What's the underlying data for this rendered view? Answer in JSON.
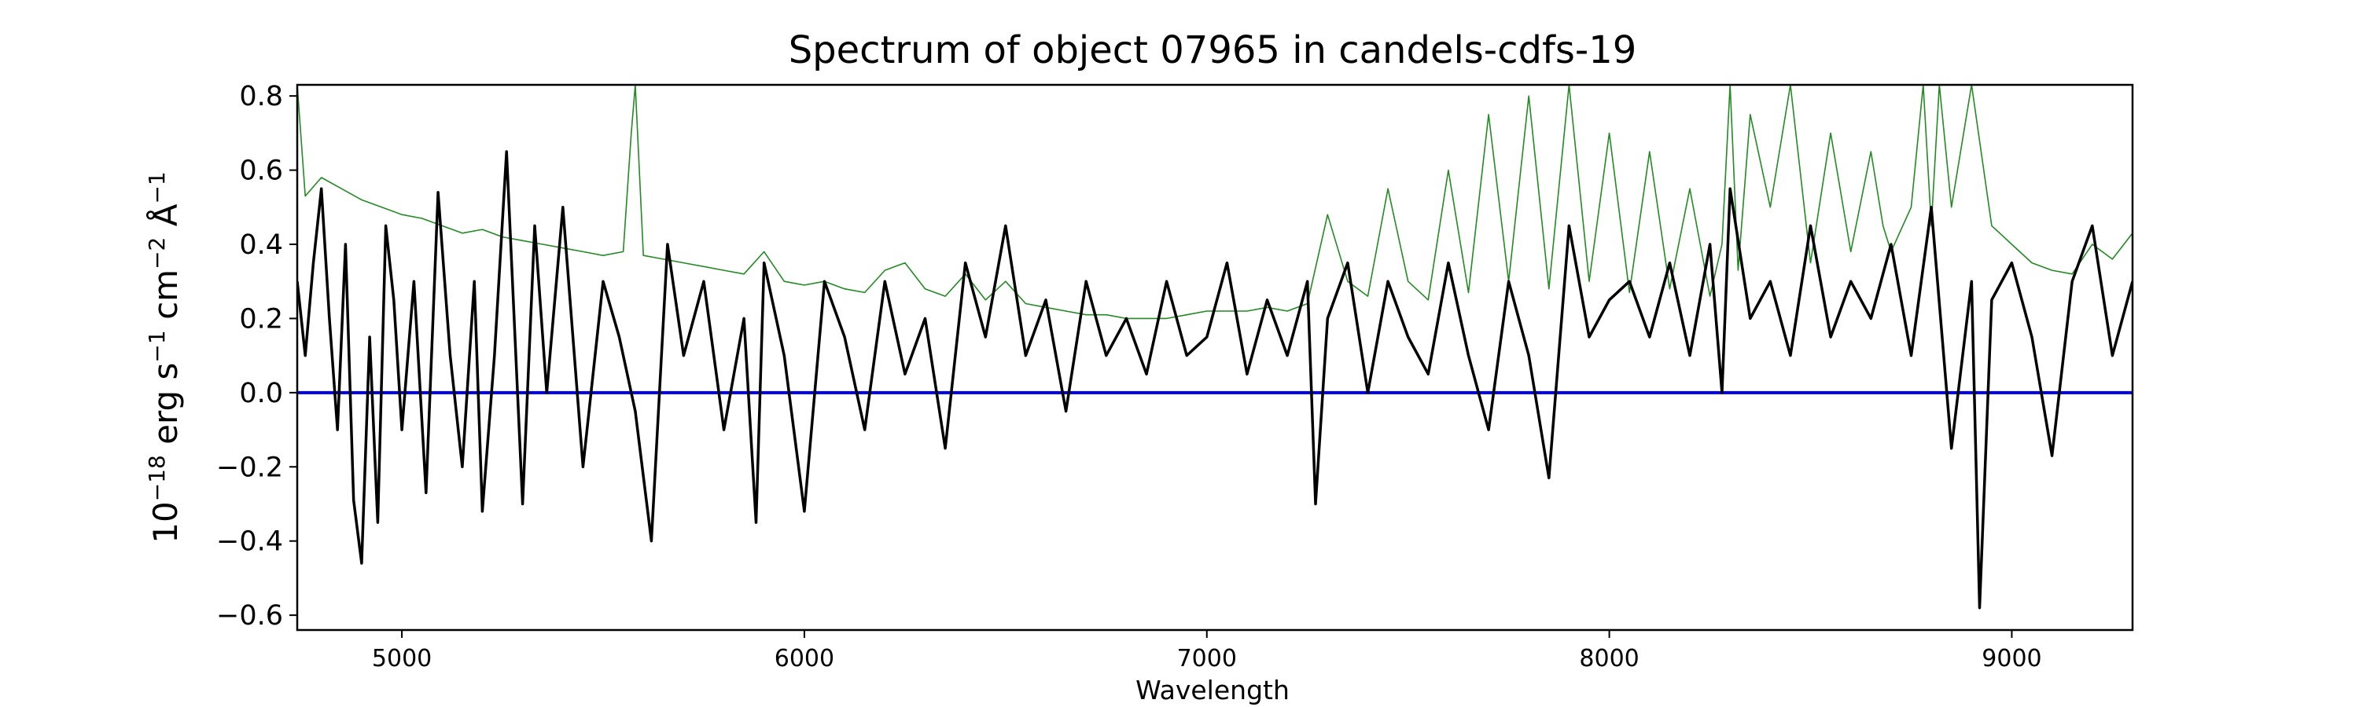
{
  "chart_data": {
    "type": "line",
    "title": "Spectrum of object 07965 in candels-cdfs-19",
    "xlabel": "Wavelength",
    "ylabel_parts": {
      "base": "10",
      "exp1": "−18",
      "u1": " erg s",
      "exp2": "−1",
      "u2": " cm",
      "exp3": "−2",
      "u3": " Å",
      "exp4": "−1"
    },
    "xlim": [
      4740,
      9300
    ],
    "ylim": [
      -0.64,
      0.83
    ],
    "x_ticks": [
      5000,
      6000,
      7000,
      8000,
      9000
    ],
    "x_tick_labels": [
      "5000",
      "6000",
      "7000",
      "8000",
      "9000"
    ],
    "y_ticks": [
      -0.6,
      -0.4,
      -0.2,
      0.0,
      0.2,
      0.4,
      0.6,
      0.8
    ],
    "y_tick_labels": [
      "−0.6",
      "−0.4",
      "−0.2",
      "0.0",
      "0.2",
      "0.4",
      "0.6",
      "0.8"
    ],
    "grid": false,
    "colors": {
      "flux": "#000000",
      "error": "#228b22",
      "zero": "#0000cc"
    },
    "series": [
      {
        "role": "flux",
        "color": "#000000",
        "x": [
          4740,
          4760,
          4780,
          4800,
          4820,
          4840,
          4860,
          4880,
          4900,
          4920,
          4940,
          4960,
          4980,
          5000,
          5030,
          5060,
          5090,
          5120,
          5150,
          5180,
          5200,
          5230,
          5260,
          5300,
          5330,
          5360,
          5400,
          5450,
          5500,
          5540,
          5580,
          5620,
          5660,
          5700,
          5750,
          5800,
          5850,
          5880,
          5900,
          5950,
          6000,
          6050,
          6100,
          6150,
          6200,
          6250,
          6300,
          6350,
          6400,
          6450,
          6500,
          6550,
          6600,
          6650,
          6700,
          6750,
          6800,
          6850,
          6900,
          6950,
          7000,
          7050,
          7100,
          7150,
          7200,
          7250,
          7270,
          7300,
          7350,
          7400,
          7450,
          7500,
          7550,
          7600,
          7650,
          7700,
          7750,
          7800,
          7850,
          7900,
          7950,
          8000,
          8050,
          8100,
          8150,
          8200,
          8250,
          8280,
          8300,
          8350,
          8400,
          8450,
          8500,
          8550,
          8600,
          8650,
          8700,
          8750,
          8800,
          8850,
          8900,
          8920,
          8950,
          9000,
          9050,
          9100,
          9150,
          9200,
          9250,
          9300
        ],
        "y": [
          0.3,
          0.1,
          0.35,
          0.55,
          0.2,
          -0.1,
          0.4,
          -0.29,
          -0.46,
          0.15,
          -0.35,
          0.45,
          0.25,
          -0.1,
          0.3,
          -0.27,
          0.54,
          0.1,
          -0.2,
          0.3,
          -0.32,
          0.1,
          0.65,
          -0.3,
          0.45,
          0.0,
          0.5,
          -0.2,
          0.3,
          0.15,
          -0.05,
          -0.4,
          0.4,
          0.1,
          0.3,
          -0.1,
          0.2,
          -0.35,
          0.35,
          0.1,
          -0.32,
          0.3,
          0.15,
          -0.1,
          0.3,
          0.05,
          0.2,
          -0.15,
          0.35,
          0.15,
          0.45,
          0.1,
          0.25,
          -0.05,
          0.3,
          0.1,
          0.2,
          0.05,
          0.3,
          0.1,
          0.15,
          0.35,
          0.05,
          0.25,
          0.1,
          0.3,
          -0.3,
          0.2,
          0.35,
          0.0,
          0.3,
          0.15,
          0.05,
          0.35,
          0.1,
          -0.1,
          0.3,
          0.1,
          -0.23,
          0.45,
          0.15,
          0.25,
          0.3,
          0.15,
          0.35,
          0.1,
          0.4,
          0.0,
          0.55,
          0.2,
          0.3,
          0.1,
          0.45,
          0.15,
          0.3,
          0.2,
          0.4,
          0.1,
          0.5,
          -0.15,
          0.3,
          -0.58,
          0.25,
          0.35,
          0.15,
          -0.17,
          0.3,
          0.45,
          0.1,
          0.3
        ]
      },
      {
        "role": "error",
        "color": "#228b22",
        "x": [
          4740,
          4760,
          4800,
          4850,
          4900,
          4950,
          5000,
          5050,
          5100,
          5150,
          5200,
          5250,
          5300,
          5350,
          5400,
          5450,
          5500,
          5550,
          5570,
          5580,
          5600,
          5650,
          5700,
          5750,
          5800,
          5850,
          5900,
          5950,
          6000,
          6050,
          6100,
          6150,
          6200,
          6250,
          6300,
          6350,
          6400,
          6450,
          6500,
          6550,
          6600,
          6650,
          6700,
          6750,
          6800,
          6850,
          6900,
          6950,
          7000,
          7050,
          7100,
          7150,
          7200,
          7250,
          7300,
          7350,
          7400,
          7450,
          7500,
          7550,
          7600,
          7650,
          7700,
          7750,
          7800,
          7850,
          7900,
          7950,
          8000,
          8050,
          8100,
          8150,
          8200,
          8250,
          8280,
          8300,
          8320,
          8350,
          8400,
          8450,
          8500,
          8550,
          8600,
          8650,
          8680,
          8700,
          8750,
          8780,
          8800,
          8820,
          8850,
          8900,
          8950,
          9000,
          9050,
          9100,
          9150,
          9200,
          9250,
          9300
        ],
        "y": [
          0.83,
          0.53,
          0.58,
          0.55,
          0.52,
          0.5,
          0.48,
          0.47,
          0.45,
          0.43,
          0.44,
          0.42,
          0.41,
          0.4,
          0.39,
          0.38,
          0.37,
          0.38,
          0.7,
          0.83,
          0.37,
          0.36,
          0.35,
          0.34,
          0.33,
          0.32,
          0.38,
          0.3,
          0.29,
          0.3,
          0.28,
          0.27,
          0.33,
          0.35,
          0.28,
          0.26,
          0.32,
          0.25,
          0.3,
          0.24,
          0.23,
          0.22,
          0.21,
          0.21,
          0.2,
          0.2,
          0.2,
          0.21,
          0.22,
          0.22,
          0.22,
          0.23,
          0.22,
          0.24,
          0.48,
          0.3,
          0.26,
          0.55,
          0.3,
          0.25,
          0.6,
          0.27,
          0.75,
          0.3,
          0.8,
          0.28,
          0.83,
          0.3,
          0.7,
          0.27,
          0.65,
          0.28,
          0.55,
          0.26,
          0.4,
          0.83,
          0.33,
          0.75,
          0.5,
          0.83,
          0.35,
          0.7,
          0.38,
          0.65,
          0.45,
          0.38,
          0.5,
          0.83,
          0.45,
          0.83,
          0.5,
          0.83,
          0.45,
          0.4,
          0.35,
          0.33,
          0.32,
          0.4,
          0.36,
          0.43
        ]
      },
      {
        "role": "zero",
        "color": "#0000cc",
        "x": [
          4740,
          9300
        ],
        "y": [
          0.0,
          0.0
        ]
      }
    ]
  }
}
